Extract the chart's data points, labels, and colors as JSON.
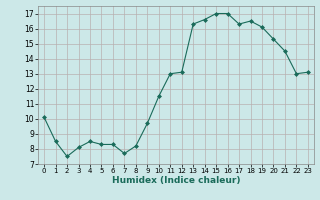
{
  "x": [
    0,
    1,
    2,
    3,
    4,
    5,
    6,
    7,
    8,
    9,
    10,
    11,
    12,
    13,
    14,
    15,
    16,
    17,
    18,
    19,
    20,
    21,
    22,
    23
  ],
  "y": [
    10.1,
    8.5,
    7.5,
    8.1,
    8.5,
    8.3,
    8.3,
    7.7,
    8.2,
    9.7,
    11.5,
    13.0,
    13.1,
    16.3,
    16.6,
    17.0,
    17.0,
    16.3,
    16.5,
    16.1,
    15.3,
    14.5,
    13.0,
    13.1
  ],
  "xlabel": "Humidex (Indice chaleur)",
  "bg_color": "#cce8e8",
  "grid_color": "#b8b0b0",
  "line_color": "#1a6b5a",
  "marker_color": "#1a6b5a",
  "ylim": [
    7,
    17.5
  ],
  "yticks": [
    7,
    8,
    9,
    10,
    11,
    12,
    13,
    14,
    15,
    16,
    17
  ],
  "xticks": [
    0,
    1,
    2,
    3,
    4,
    5,
    6,
    7,
    8,
    9,
    10,
    11,
    12,
    13,
    14,
    15,
    16,
    17,
    18,
    19,
    20,
    21,
    22,
    23
  ]
}
